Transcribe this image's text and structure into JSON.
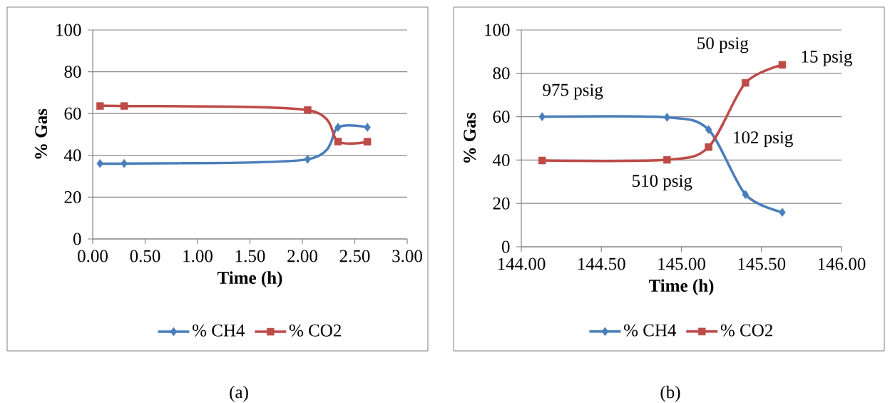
{
  "chart_data": [
    {
      "type": "line",
      "xlabel": "Time (h)",
      "ylabel": "% Gas",
      "xlim": [
        0,
        3
      ],
      "ylim": [
        0,
        100
      ],
      "xticks": [
        {
          "value": 0,
          "label": "0.00"
        },
        {
          "value": 0.5,
          "label": "0.50"
        },
        {
          "value": 1,
          "label": "1.00"
        },
        {
          "value": 1.5,
          "label": "1.50"
        },
        {
          "value": 2,
          "label": "2.00"
        },
        {
          "value": 2.5,
          "label": "2.50"
        },
        {
          "value": 3,
          "label": "3.00"
        }
      ],
      "yticks": [
        0,
        20,
        40,
        60,
        80,
        100
      ],
      "grid": "y",
      "legend": "bottom",
      "series": [
        {
          "name": "% CH4",
          "color": "#4a7ebb",
          "marker": "diamond",
          "x": [
            0.07,
            0.3,
            2.05,
            2.34,
            2.62
          ],
          "values": [
            36.1,
            36.1,
            38.1,
            53.4,
            53.4
          ]
        },
        {
          "name": "% CO2",
          "color": "#be4b48",
          "marker": "square",
          "x": [
            0.07,
            0.3,
            2.05,
            2.34,
            2.62
          ],
          "values": [
            63.6,
            63.6,
            61.7,
            46.6,
            46.5
          ]
        }
      ],
      "annotations": [
        "(a)"
      ]
    },
    {
      "type": "line",
      "xlabel": "Time (h)",
      "ylabel": "% Gas",
      "xlim": [
        144,
        146
      ],
      "ylim": [
        0,
        100
      ],
      "xticks": [
        {
          "value": 144,
          "label": "144.00"
        },
        {
          "value": 144.5,
          "label": "144.50"
        },
        {
          "value": 145,
          "label": "145.00"
        },
        {
          "value": 145.5,
          "label": "145.50"
        },
        {
          "value": 146,
          "label": "146.00"
        }
      ],
      "yticks": [
        0,
        20,
        40,
        60,
        80,
        100
      ],
      "grid": "y",
      "legend": "bottom",
      "series": [
        {
          "name": "% CH4",
          "color": "#4a7ebb",
          "marker": "diamond",
          "x": [
            144.13,
            144.91,
            145.17,
            145.4,
            145.63
          ],
          "values": [
            60,
            59.7,
            54,
            24.1,
            15.9
          ]
        },
        {
          "name": "% CO2",
          "color": "#be4b48",
          "marker": "square",
          "x": [
            144.13,
            144.91,
            145.17,
            145.4,
            145.63
          ],
          "values": [
            39.8,
            40.1,
            46,
            75.6,
            83.9
          ]
        }
      ],
      "annotations": [
        {
          "text": "975 psig",
          "x": 144.13,
          "y": 60
        },
        {
          "text": "510 psig",
          "x": 144.91,
          "y": 40.1
        },
        {
          "text": "102 psig",
          "x": 145.17,
          "y": 46
        },
        {
          "text": "50 psig",
          "x": 145.4,
          "y": 75.6
        },
        {
          "text": "15 psig",
          "x": 145.63,
          "y": 83.9
        },
        "(b)"
      ]
    }
  ]
}
